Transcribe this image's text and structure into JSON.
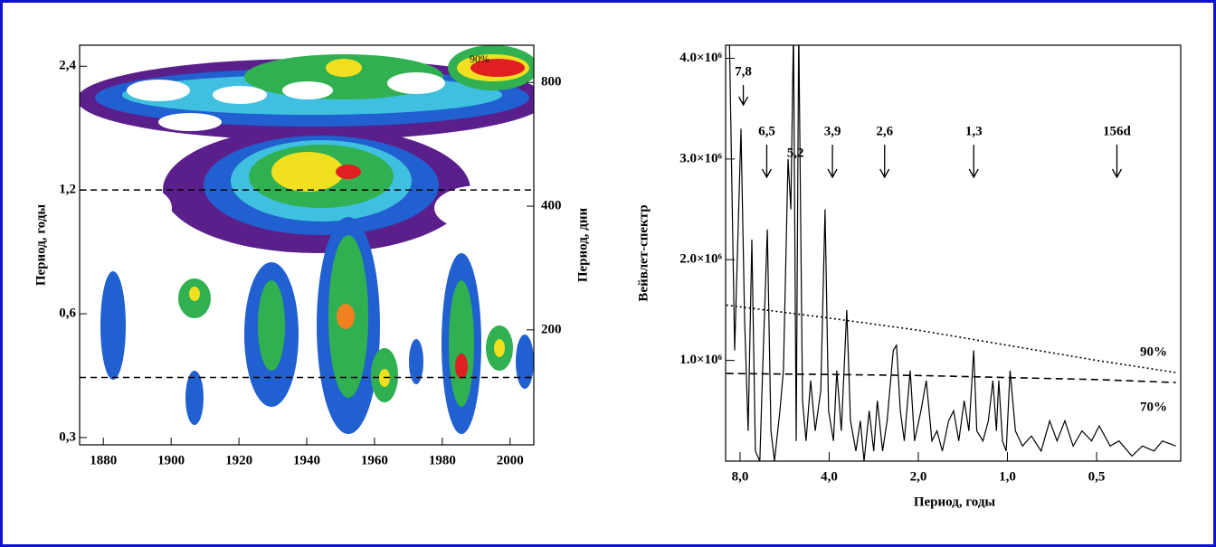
{
  "chart_data": [
    {
      "type": "wavelet",
      "ylabel": "Период, годы",
      "y2label": "Период, дни",
      "xlim": [
        1873,
        2007
      ],
      "xticks": [
        1880,
        1900,
        1920,
        1940,
        1960,
        1980,
        2000
      ],
      "ylim": [
        0.288,
        2.7
      ],
      "log_y": true,
      "yticks": [
        {
          "value": 2.4,
          "label": "2,4"
        },
        {
          "value": 1.2,
          "label": "1,2"
        },
        {
          "value": 0.6,
          "label": "0,6"
        },
        {
          "value": 0.3,
          "label": "0,3"
        }
      ],
      "y2lim": [
        105,
        986
      ],
      "y2ticks": [
        800,
        400,
        200
      ],
      "reference_lines": [
        1.2,
        0.42
      ],
      "annotation": "90%"
    },
    {
      "type": "line",
      "xlabel": "Период, годы",
      "ylabel": "Вейвлет-спектр",
      "log_x": true,
      "xlim": [
        8.95,
        0.26
      ],
      "xticks": [
        {
          "value": 8,
          "label": "8,0"
        },
        {
          "value": 4,
          "label": "4,0"
        },
        {
          "value": 2,
          "label": "2,0"
        },
        {
          "value": 1,
          "label": "1,0"
        },
        {
          "value": 0.5,
          "label": "0,5"
        }
      ],
      "ylim": [
        0,
        4130000
      ],
      "yticks": [
        {
          "value": 4000000,
          "label": "4.0×10⁶"
        },
        {
          "value": 3000000,
          "label": "3.0×10⁶"
        },
        {
          "value": 2000000,
          "label": "2.0×10⁶"
        },
        {
          "value": 1000000,
          "label": "1.0×10⁶"
        }
      ],
      "series": [
        {
          "color": "#000000",
          "style": "solid",
          "x": [
            8.7,
            8.34,
            7.94,
            7.72,
            7.51,
            7.3,
            7.1,
            6.86,
            6.71,
            6.47,
            6.29,
            6.12,
            5.87,
            5.71,
            5.51,
            5.39,
            5.28,
            5.17,
            5.07,
            4.92,
            4.79,
            4.62,
            4.46,
            4.27,
            4.13,
            4.02,
            3.87,
            3.77,
            3.64,
            3.49,
            3.39,
            3.25,
            3.14,
            3.05,
            2.93,
            2.83,
            2.75,
            2.64,
            2.55,
            2.43,
            2.37,
            2.3,
            2.23,
            2.13,
            2.06,
            1.96,
            1.88,
            1.8,
            1.73,
            1.66,
            1.58,
            1.52,
            1.46,
            1.4,
            1.35,
            1.3,
            1.27,
            1.21,
            1.16,
            1.12,
            1.09,
            1.07,
            1.04,
            1.01,
            0.98,
            0.94,
            0.89,
            0.83,
            0.77,
            0.72,
            0.68,
            0.64,
            0.6,
            0.56,
            0.52,
            0.49,
            0.45,
            0.42,
            0.38,
            0.35,
            0.32,
            0.3,
            0.27
          ],
          "values": [
            4300000,
            1100000,
            3300000,
            1400000,
            300000,
            2200000,
            100000,
            0,
            900000,
            2300000,
            300000,
            0,
            500000,
            900000,
            3000000,
            2500000,
            4300000,
            200000,
            4300000,
            600000,
            200000,
            800000,
            300000,
            700000,
            2500000,
            500000,
            200000,
            900000,
            300000,
            1500000,
            400000,
            100000,
            400000,
            0,
            500000,
            100000,
            600000,
            100000,
            400000,
            1100000,
            1150000,
            500000,
            200000,
            900000,
            200000,
            500000,
            800000,
            200000,
            300000,
            100000,
            400000,
            500000,
            200000,
            600000,
            300000,
            1100000,
            300000,
            200000,
            400000,
            800000,
            300000,
            800000,
            200000,
            100000,
            900000,
            300000,
            150000,
            250000,
            100000,
            400000,
            200000,
            400000,
            150000,
            300000,
            200000,
            350000,
            150000,
            200000,
            50000,
            150000,
            100000,
            200000,
            150000
          ]
        },
        {
          "name": "90%",
          "color": "#000000",
          "style": "dotted",
          "x": [
            8.9,
            4.0,
            2.0,
            1.0,
            0.5,
            0.27
          ],
          "values": [
            1550000,
            1420000,
            1300000,
            1150000,
            1000000,
            880000
          ]
        },
        {
          "name": "70%",
          "color": "#000000",
          "style": "dashed",
          "x": [
            8.9,
            4.0,
            2.0,
            1.0,
            0.5,
            0.27
          ],
          "values": [
            870000,
            860000,
            850000,
            830000,
            810000,
            780000
          ]
        }
      ],
      "annotations": [
        {
          "text": "7,8",
          "x": 7.8
        },
        {
          "text": "6,5",
          "x": 6.5
        },
        {
          "text": "5,2",
          "x": 5.2
        },
        {
          "text": "3,9",
          "x": 3.9
        },
        {
          "text": "2,6",
          "x": 2.6
        },
        {
          "text": "1,3",
          "x": 1.3
        },
        {
          "text": "156d",
          "x": 0.427
        }
      ]
    }
  ]
}
